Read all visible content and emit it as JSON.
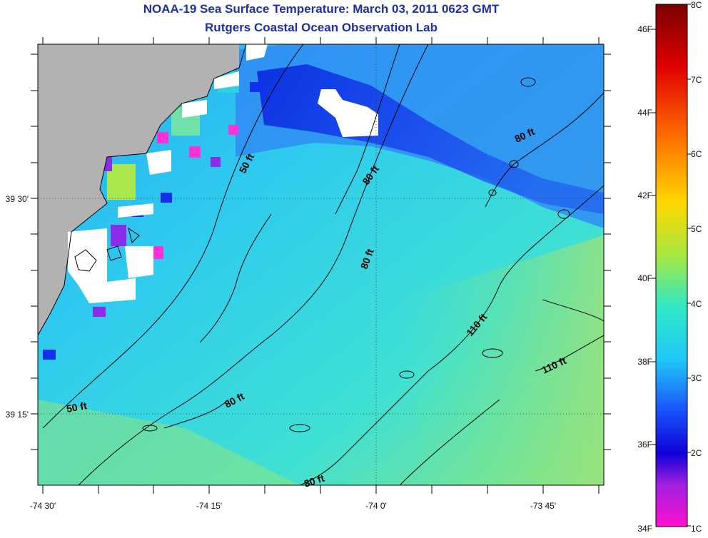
{
  "title": {
    "line1": "NOAA-19 Sea Surface Temperature:  March 03, 2011 0623 GMT",
    "line2": "Rutgers Coastal Ocean Observation Lab"
  },
  "axes": {
    "x_ticks": [
      "-74 30'",
      "-74 15'",
      "-74 0'",
      "-73 45'"
    ],
    "y_ticks": [
      "39 30'",
      "39 15'"
    ]
  },
  "contour_labels": [
    "50 ft",
    "50 ft",
    "80 ft",
    "80 ft",
    "80 ft",
    "80 ft",
    "80 ft",
    "110 ft",
    "110 ft"
  ],
  "colorbar": {
    "fahrenheit_labels": [
      "46F",
      "44F",
      "42F",
      "40F",
      "38F",
      "36F",
      "34F"
    ],
    "celsius_labels": [
      "8C",
      "7C",
      "6C",
      "5C",
      "4C",
      "3C",
      "2C",
      "1C"
    ]
  },
  "colors": {
    "land": "#b2b2b2",
    "title": "#1f2fa8",
    "cold_water": "#1a3ee8",
    "mid_water": "#2fd0e6",
    "warm_water": "#86e28a"
  }
}
